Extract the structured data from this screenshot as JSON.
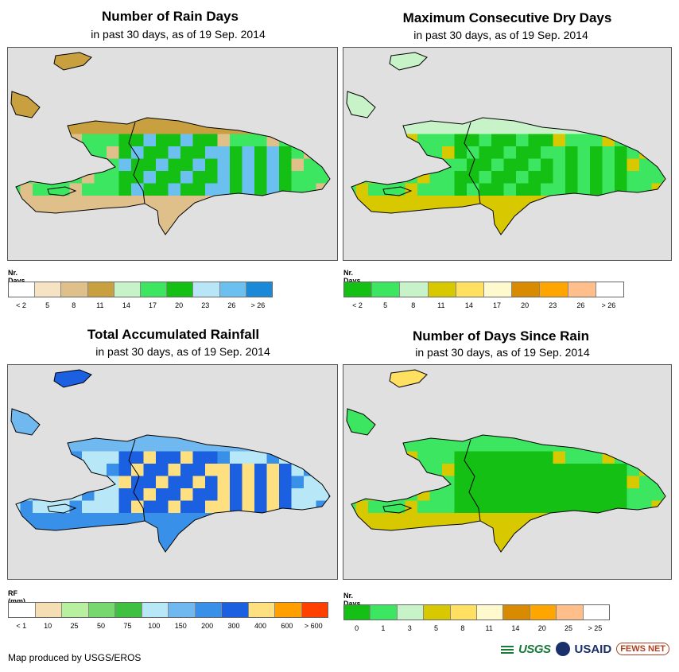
{
  "panels": [
    {
      "id": "rain-days",
      "title": "Number of Rain Days",
      "subtitle": "in past 30 days, as of 19 Sep. 2014",
      "legend_title": "Nr. Days",
      "legend_colors": [
        "#ffffff",
        "#f5e3c3",
        "#dfc08b",
        "#c8a040",
        "#c8f2c8",
        "#3de660",
        "#13c013",
        "#b8e6f8",
        "#6cc0f0",
        "#1a8ad8"
      ],
      "legend_labels": [
        "< 2",
        "5",
        "8",
        "11",
        "14",
        "17",
        "20",
        "23",
        "26",
        "> 26"
      ],
      "region_colors": {
        "north": "#c8a040",
        "center": "#13c013",
        "core": "#6cc0f0",
        "south": "#3de660",
        "edge": "#dfc08b",
        "islands": "#c8a040"
      }
    },
    {
      "id": "max-dry-days",
      "title": "Maximum Consecutive Dry Days",
      "subtitle": "in past 30 days, as of 19 Sep. 2014",
      "legend_title": "Nr. Days",
      "legend_colors": [
        "#13c013",
        "#3de660",
        "#c8f2c8",
        "#d8c800",
        "#ffe060",
        "#fffacd",
        "#d88a00",
        "#ffa500",
        "#ffbe8a",
        "#ffffff"
      ],
      "legend_labels": [
        "< 2",
        "5",
        "8",
        "11",
        "14",
        "17",
        "20",
        "23",
        "26",
        "> 26"
      ],
      "region_colors": {
        "north": "#c8f2c8",
        "center": "#13c013",
        "core": "#3de660",
        "south": "#3de660",
        "edge": "#d8c800",
        "islands": "#c8f2c8"
      }
    },
    {
      "id": "total-rainfall",
      "title": "Total Accumulated Rainfall",
      "subtitle": "in past 30 days, as of 19 Sep. 2014",
      "legend_title": "RF (mm)",
      "legend_colors": [
        "#ffffff",
        "#f5deb3",
        "#b8f0a0",
        "#78d870",
        "#40c040",
        "#b8e8f8",
        "#70b8f0",
        "#3890e8",
        "#1a60e0",
        "#ffe080",
        "#ffa000",
        "#ff4000"
      ],
      "legend_labels": [
        "< 1",
        "10",
        "25",
        "50",
        "75",
        "100",
        "150",
        "200",
        "300",
        "400",
        "600",
        "> 600"
      ],
      "region_colors": {
        "north": "#70b8f0",
        "center": "#1a60e0",
        "core": "#ffe080",
        "south": "#b8e8f8",
        "edge": "#3890e8",
        "islands": "#1a60e0"
      }
    },
    {
      "id": "days-since-rain",
      "title": "Number of Days Since Rain",
      "subtitle": "in past 30 days, as of 19 Sep. 2014",
      "legend_title": "Nr. Days",
      "legend_colors": [
        "#13c013",
        "#3de660",
        "#c8f2c8",
        "#d8c800",
        "#ffe060",
        "#fffacd",
        "#d88a00",
        "#ffa500",
        "#ffbe8a",
        "#ffffff"
      ],
      "legend_labels": [
        "0",
        "1",
        "3",
        "5",
        "8",
        "11",
        "14",
        "20",
        "25",
        "> 25"
      ],
      "region_colors": {
        "north": "#3de660",
        "center": "#13c013",
        "core": "#13c013",
        "south": "#3de660",
        "edge": "#d8c800",
        "islands": "#ffe060"
      }
    }
  ],
  "footer": {
    "credit": "Map produced by USGS/EROS",
    "logo_usgs": "USGS",
    "logo_usaid": "USAID",
    "logo_fews": "FEWS NET"
  }
}
